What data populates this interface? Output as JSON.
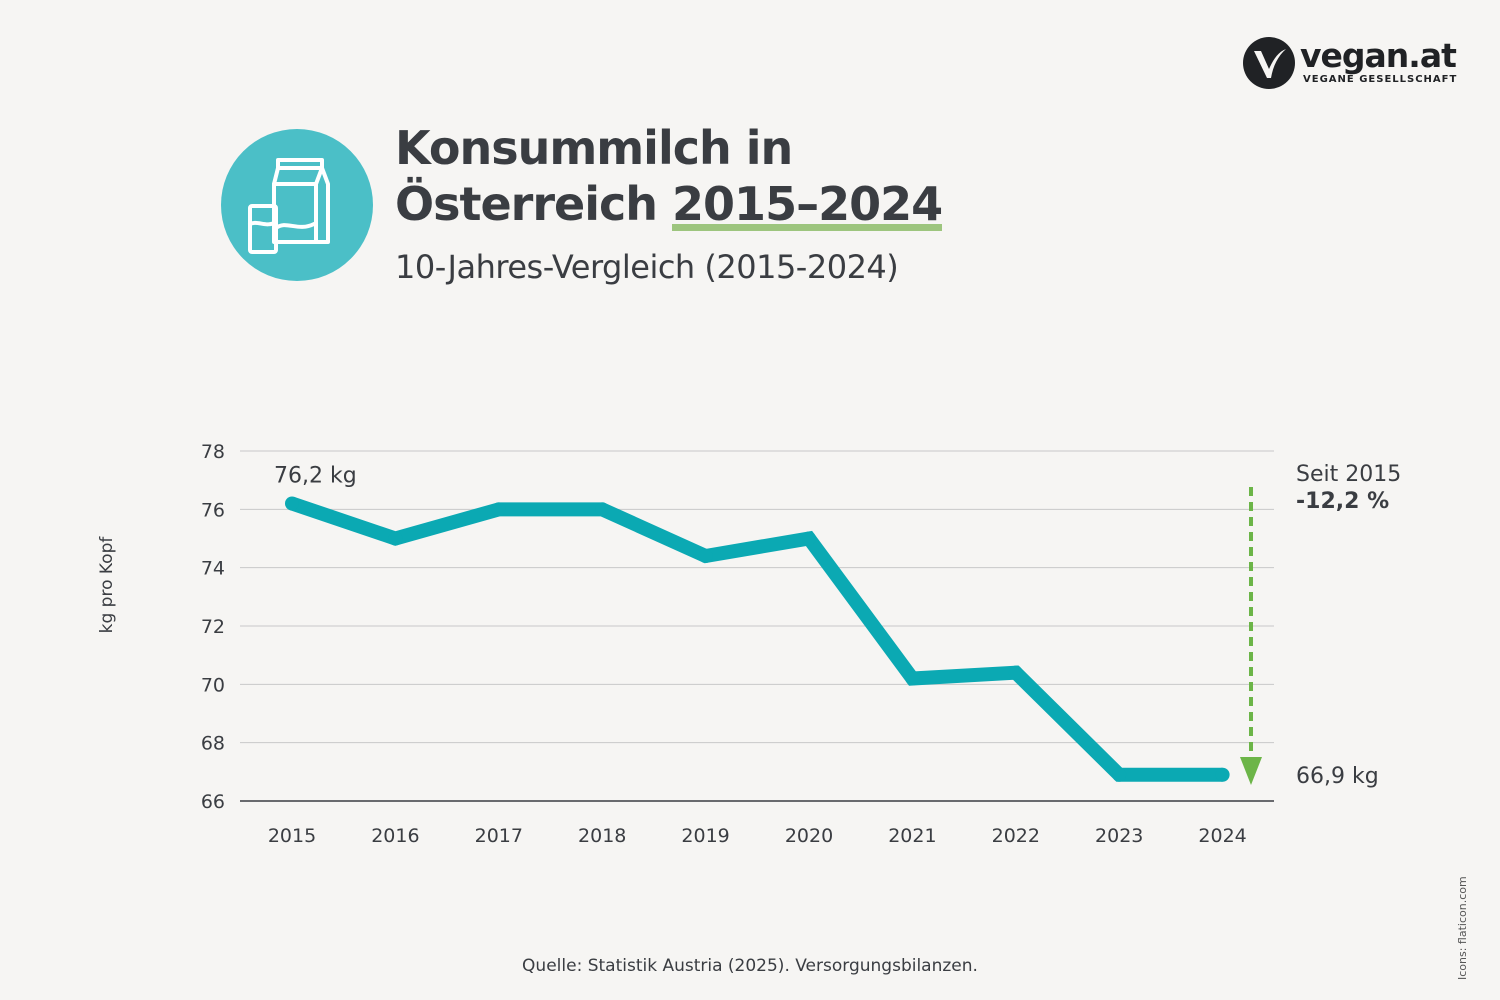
{
  "brand": {
    "name": "vegan.at",
    "tagline": "VEGANE GESELLSCHAFT"
  },
  "header": {
    "title_line1": "Konsummilch in",
    "title_line2_prefix": "Österreich ",
    "title_line2_years": "2015–2024",
    "subtitle": "10-Jahres-Vergleich (2015-2024)",
    "icon": "milk-carton-and-glass-icon"
  },
  "colors": {
    "line": "#0ba9b3",
    "icon_circle": "#4bbfc7",
    "arrow": "#6cb548",
    "highlight": "#9dc57e",
    "text": "#3a3d42",
    "grid": "#c8c8c8",
    "background": "#f6f5f3"
  },
  "chart_data": {
    "type": "line",
    "x": [
      "2015",
      "2016",
      "2017",
      "2018",
      "2019",
      "2020",
      "2021",
      "2022",
      "2023",
      "2024"
    ],
    "series": [
      {
        "values": [
          76.2,
          75.0,
          76.0,
          76.0,
          74.4,
          75.0,
          70.2,
          70.4,
          66.9,
          66.9
        ]
      }
    ],
    "ylabel": "kg pro Kopf",
    "ylim": [
      66,
      78
    ],
    "yticks": [
      78,
      76,
      74,
      72,
      70,
      68,
      66
    ],
    "grid": true,
    "annotations": {
      "start_label": "76,2 kg",
      "end_label": "66,9 kg",
      "change_caption": "Seit 2015",
      "change_value": "-12,2 %"
    }
  },
  "footer": {
    "source": "Quelle: Statistik Austria (2025). Versorgungsbilanzen.",
    "credit": "Icons: flaticon.com"
  }
}
